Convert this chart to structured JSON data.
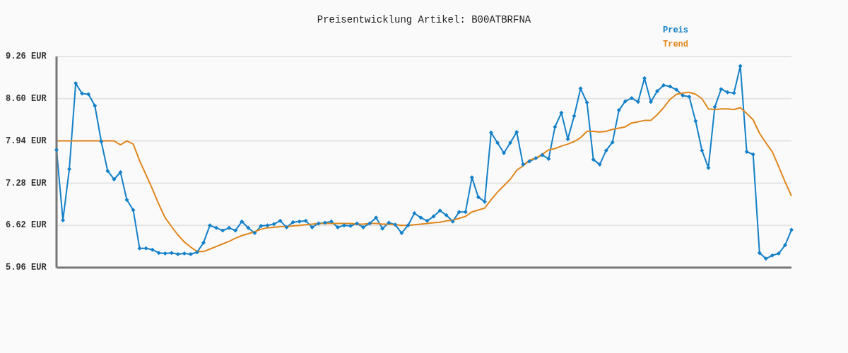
{
  "chart_data": {
    "type": "line",
    "title": "Preisentwicklung Artikel: B00ATBRFNA",
    "categories": [
      null,
      null,
      null,
      null,
      null,
      null,
      null,
      null,
      null,
      null,
      null,
      null,
      null,
      null,
      null,
      null,
      null,
      null,
      null,
      null,
      null,
      null,
      null,
      null,
      null,
      null,
      null,
      null,
      null,
      null,
      null,
      null,
      null,
      null,
      null,
      null,
      null,
      null,
      null,
      null,
      null,
      null,
      null,
      null,
      null,
      null,
      null,
      null,
      null,
      null,
      null,
      null,
      null,
      null,
      null,
      null,
      null,
      null,
      null,
      null,
      null,
      null,
      null,
      null,
      null,
      null,
      null,
      null,
      null,
      null,
      null,
      null,
      null,
      null,
      null,
      null,
      null,
      null,
      null,
      null,
      null,
      null,
      null,
      null,
      null,
      null,
      null,
      null,
      null,
      null,
      null,
      null,
      null,
      null,
      null,
      null,
      null,
      null,
      null,
      null,
      null,
      null,
      null,
      null,
      null,
      null,
      null,
      null,
      null,
      null,
      null,
      null,
      null,
      null,
      null,
      null
    ],
    "series": [
      {
        "name": "Preis",
        "color": "#1380c8",
        "marker": "diamond",
        "values": [
          7.8,
          6.7,
          7.5,
          8.84,
          8.68,
          8.67,
          8.49,
          7.93,
          7.47,
          7.34,
          7.45,
          7.02,
          6.86,
          6.26,
          6.26,
          6.24,
          6.19,
          6.18,
          6.19,
          6.17,
          6.18,
          6.17,
          6.2,
          6.35,
          6.62,
          6.58,
          6.54,
          6.58,
          6.54,
          6.68,
          6.58,
          6.5,
          6.61,
          6.62,
          6.64,
          6.69,
          6.59,
          6.67,
          6.68,
          6.69,
          6.59,
          6.65,
          6.66,
          6.68,
          6.59,
          6.62,
          6.61,
          6.65,
          6.59,
          6.65,
          6.74,
          6.57,
          6.66,
          6.63,
          6.5,
          6.62,
          6.81,
          6.74,
          6.69,
          6.76,
          6.85,
          6.78,
          6.68,
          6.83,
          6.83,
          7.37,
          7.06,
          6.99,
          8.07,
          7.91,
          7.75,
          7.91,
          8.08,
          7.57,
          7.62,
          7.67,
          7.72,
          7.66,
          8.16,
          8.38,
          7.97,
          8.33,
          8.76,
          8.54,
          7.65,
          7.57,
          7.79,
          7.92,
          8.42,
          8.56,
          8.61,
          8.55,
          8.92,
          8.55,
          8.72,
          8.81,
          8.79,
          8.74,
          8.65,
          8.63,
          8.25,
          7.79,
          7.52,
          8.47,
          8.75,
          8.7,
          8.69,
          9.11,
          7.77,
          7.73,
          6.19,
          6.1,
          6.15,
          6.18,
          6.31,
          6.55
        ]
      },
      {
        "name": "Trend",
        "color": "#e0861c",
        "marker": "none",
        "values": [
          7.94,
          7.94,
          7.94,
          7.94,
          7.94,
          7.94,
          7.94,
          7.94,
          7.94,
          7.94,
          7.88,
          7.94,
          7.89,
          7.63,
          7.41,
          7.19,
          6.95,
          6.74,
          6.6,
          6.47,
          6.36,
          6.28,
          6.21,
          6.21,
          6.25,
          6.29,
          6.33,
          6.37,
          6.42,
          6.46,
          6.49,
          6.52,
          6.56,
          6.58,
          6.59,
          6.6,
          6.6,
          6.61,
          6.62,
          6.63,
          6.64,
          6.65,
          6.65,
          6.65,
          6.65,
          6.65,
          6.65,
          6.64,
          6.64,
          6.65,
          6.65,
          6.64,
          6.64,
          6.63,
          6.62,
          6.62,
          6.63,
          6.64,
          6.65,
          6.66,
          6.67,
          6.69,
          6.7,
          6.73,
          6.76,
          6.83,
          6.86,
          6.89,
          7.02,
          7.14,
          7.24,
          7.34,
          7.48,
          7.55,
          7.64,
          7.67,
          7.73,
          7.8,
          7.82,
          7.86,
          7.89,
          7.93,
          7.99,
          8.09,
          8.09,
          8.08,
          8.09,
          8.12,
          8.14,
          8.16,
          8.22,
          8.24,
          8.26,
          8.26,
          8.35,
          8.46,
          8.59,
          8.67,
          8.69,
          8.7,
          8.67,
          8.6,
          8.44,
          8.43,
          8.44,
          8.44,
          8.43,
          8.46,
          8.37,
          8.27,
          8.06,
          7.91,
          7.77,
          7.54,
          7.3,
          7.08
        ]
      }
    ],
    "ylim": [
      5.96,
      9.26
    ],
    "yticks": [
      {
        "value": 5.96,
        "label": "5.96 EUR"
      },
      {
        "value": 6.62,
        "label": "6.62 EUR"
      },
      {
        "value": 7.28,
        "label": "7.28 EUR"
      },
      {
        "value": 7.94,
        "label": "7.94 EUR"
      },
      {
        "value": 8.6,
        "label": "8.60 EUR"
      },
      {
        "value": 9.26,
        "label": "9.26 EUR"
      }
    ],
    "grid": "y",
    "legend": "top right"
  }
}
